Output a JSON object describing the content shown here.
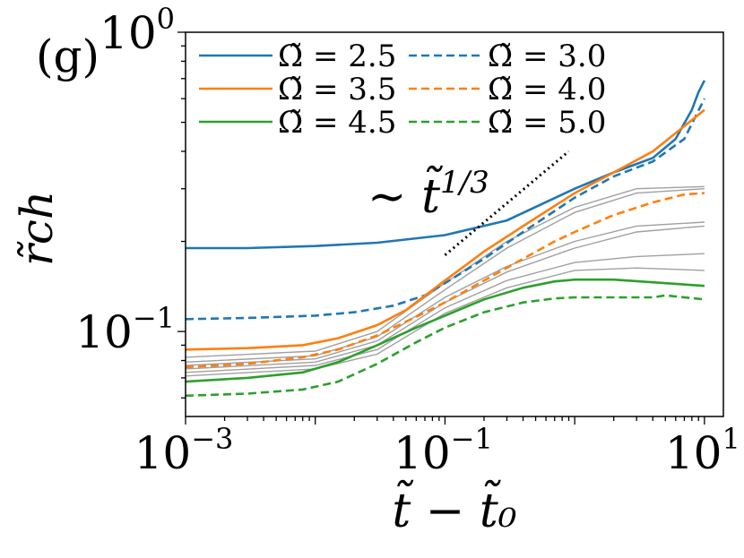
{
  "panel_label": "(g)",
  "chart_data": {
    "type": "line",
    "xscale": "log",
    "yscale": "log",
    "xlim": [
      0.001,
      14
    ],
    "ylim": [
      0.052,
      1.0
    ],
    "xlabel": "t̃ − t̃₀",
    "ylabel": "r̃ch",
    "x_ticks": [
      {
        "value": 0.001,
        "base": "10",
        "exp": "−3"
      },
      {
        "value": 0.1,
        "base": "10",
        "exp": "−1"
      },
      {
        "value": 10,
        "base": "10",
        "exp": "1"
      }
    ],
    "y_ticks": [
      {
        "value": 0.1,
        "base": "10",
        "exp": "−1"
      },
      {
        "value": 1.0,
        "base": "10",
        "exp": "0"
      }
    ],
    "annotation": {
      "prefix": "∼ t̃",
      "exp": "1/3",
      "line": {
        "x": [
          0.1,
          0.9
        ],
        "y": [
          0.18,
          0.4
        ]
      },
      "color": "#000000"
    },
    "legend": {
      "placement": "top-left",
      "columns": 2
    },
    "series": [
      {
        "name": "Ω̃ = 2.5",
        "color": "#1f77b4",
        "dash": "solid",
        "x": [
          0.001,
          0.003,
          0.01,
          0.03,
          0.1,
          0.3,
          1,
          2,
          4,
          6,
          8,
          9,
          10
        ],
        "y": [
          0.19,
          0.19,
          0.193,
          0.198,
          0.21,
          0.235,
          0.3,
          0.34,
          0.38,
          0.44,
          0.55,
          0.63,
          0.69
        ]
      },
      {
        "name": "Ω̃ = 3.0",
        "color": "#1f77b4",
        "dash": "dashed",
        "x": [
          0.001,
          0.003,
          0.01,
          0.02,
          0.04,
          0.07,
          0.1,
          0.2,
          0.4,
          1,
          2,
          4,
          7,
          10
        ],
        "y": [
          0.11,
          0.111,
          0.113,
          0.116,
          0.122,
          0.132,
          0.145,
          0.175,
          0.215,
          0.28,
          0.33,
          0.37,
          0.44,
          0.6
        ]
      },
      {
        "name": "Ω̃ = 3.5",
        "color": "#ff7f0e",
        "dash": "solid",
        "x": [
          0.001,
          0.003,
          0.008,
          0.015,
          0.03,
          0.05,
          0.1,
          0.2,
          0.4,
          1,
          2,
          4,
          10
        ],
        "y": [
          0.087,
          0.088,
          0.09,
          0.095,
          0.105,
          0.118,
          0.148,
          0.185,
          0.225,
          0.29,
          0.34,
          0.4,
          0.55
        ]
      },
      {
        "name": "Ω̃ = 4.0",
        "color": "#ff7f0e",
        "dash": "dashed",
        "x": [
          0.001,
          0.003,
          0.008,
          0.015,
          0.03,
          0.06,
          0.1,
          0.2,
          0.4,
          0.7,
          1,
          2,
          4,
          7,
          10
        ],
        "y": [
          0.076,
          0.078,
          0.082,
          0.087,
          0.097,
          0.112,
          0.125,
          0.148,
          0.175,
          0.2,
          0.215,
          0.245,
          0.27,
          0.287,
          0.29
        ]
      },
      {
        "name": "Ω̃ = 4.5",
        "color": "#2ca02c",
        "dash": "solid",
        "x": [
          0.001,
          0.003,
          0.008,
          0.015,
          0.03,
          0.06,
          0.1,
          0.2,
          0.4,
          0.7,
          1,
          2,
          4,
          10
        ],
        "y": [
          0.068,
          0.07,
          0.073,
          0.079,
          0.09,
          0.103,
          0.113,
          0.128,
          0.14,
          0.147,
          0.149,
          0.149,
          0.146,
          0.142
        ]
      },
      {
        "name": "Ω̃ = 5.0",
        "color": "#2ca02c",
        "dash": "dashed",
        "x": [
          0.001,
          0.003,
          0.008,
          0.015,
          0.03,
          0.06,
          0.1,
          0.2,
          0.4,
          0.7,
          1,
          2,
          4,
          5,
          7,
          10
        ],
        "y": [
          0.061,
          0.062,
          0.064,
          0.068,
          0.078,
          0.092,
          0.103,
          0.116,
          0.125,
          0.129,
          0.13,
          0.13,
          0.13,
          0.132,
          0.13,
          0.128
        ]
      }
    ],
    "gray_curves": {
      "color": "#a0a0a0",
      "curves": [
        {
          "x": [
            0.001,
            0.01,
            0.03,
            0.1,
            0.3,
            1,
            3,
            10
          ],
          "y": [
            0.082,
            0.086,
            0.1,
            0.145,
            0.2,
            0.26,
            0.3,
            0.305
          ]
        },
        {
          "x": [
            0.001,
            0.01,
            0.03,
            0.1,
            0.3,
            1,
            3,
            10
          ],
          "y": [
            0.079,
            0.083,
            0.096,
            0.138,
            0.19,
            0.25,
            0.29,
            0.3
          ]
        },
        {
          "x": [
            0.001,
            0.01,
            0.03,
            0.1,
            0.3,
            1,
            3,
            10
          ],
          "y": [
            0.077,
            0.081,
            0.093,
            0.13,
            0.165,
            0.2,
            0.225,
            0.232
          ]
        },
        {
          "x": [
            0.001,
            0.01,
            0.03,
            0.1,
            0.3,
            1,
            3,
            10
          ],
          "y": [
            0.075,
            0.079,
            0.09,
            0.125,
            0.158,
            0.19,
            0.215,
            0.225
          ]
        },
        {
          "x": [
            0.001,
            0.01,
            0.03,
            0.1,
            0.3,
            1,
            3,
            10
          ],
          "y": [
            0.073,
            0.077,
            0.087,
            0.12,
            0.148,
            0.17,
            0.178,
            0.182
          ]
        },
        {
          "x": [
            0.001,
            0.01,
            0.03,
            0.1,
            0.3,
            1,
            3,
            10
          ],
          "y": [
            0.071,
            0.075,
            0.084,
            0.115,
            0.14,
            0.16,
            0.163,
            0.16
          ]
        }
      ]
    }
  }
}
